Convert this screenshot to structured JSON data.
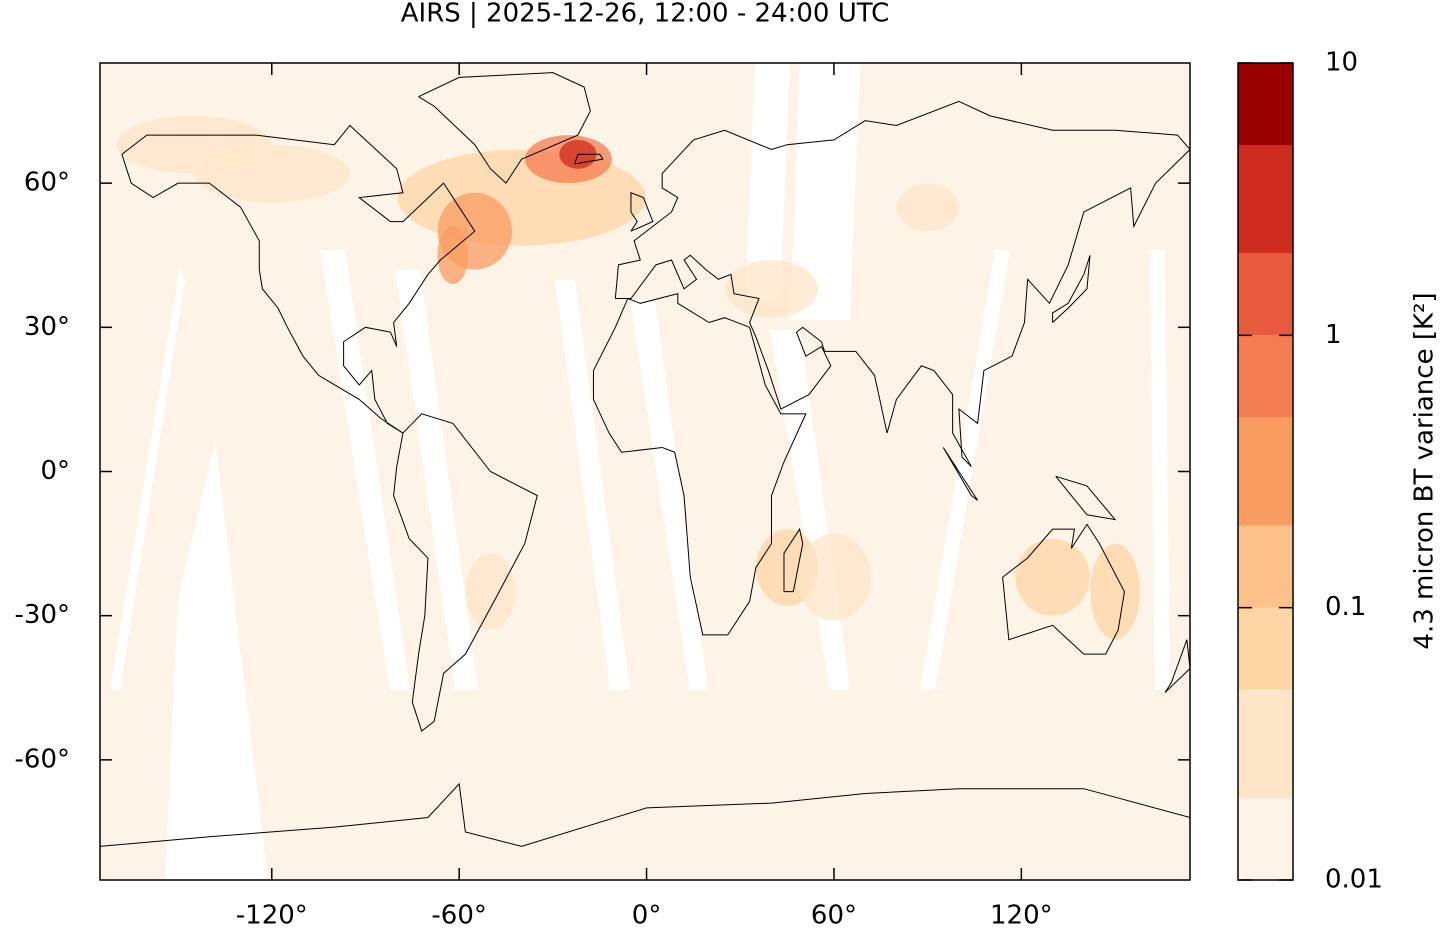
{
  "chart_data": {
    "type": "map",
    "title": "AIRS | 2025-12-26, 12:00 - 24:00 UTC",
    "xlim": [
      -175,
      174
    ],
    "ylim": [
      -85,
      85
    ],
    "xticks": [
      {
        "value": -120,
        "label": "-120°"
      },
      {
        "value": -60,
        "label": "-60°"
      },
      {
        "value": 0,
        "label": "0°"
      },
      {
        "value": 60,
        "label": "60°"
      },
      {
        "value": 120,
        "label": "120°"
      }
    ],
    "yticks": [
      {
        "value": -60,
        "label": "-60°"
      },
      {
        "value": -30,
        "label": "-30°"
      },
      {
        "value": 0,
        "label": "0°"
      },
      {
        "value": 30,
        "label": "30°"
      },
      {
        "value": 60,
        "label": "60°"
      }
    ],
    "colorbar": {
      "label": "4.3 micron BT variance [K²]",
      "log": true,
      "levels": [
        0.01,
        0.02,
        0.05,
        0.1,
        0.2,
        0.5,
        1,
        2,
        5,
        10
      ],
      "colors": [
        "#fef3e7",
        "#fde6c8",
        "#fdd4a4",
        "#fcc08a",
        "#f99c62",
        "#f47c52",
        "#e65a3e",
        "#cc2b1e",
        "#990000"
      ],
      "ticks": [
        0.01,
        0.1,
        1,
        10
      ]
    }
  }
}
